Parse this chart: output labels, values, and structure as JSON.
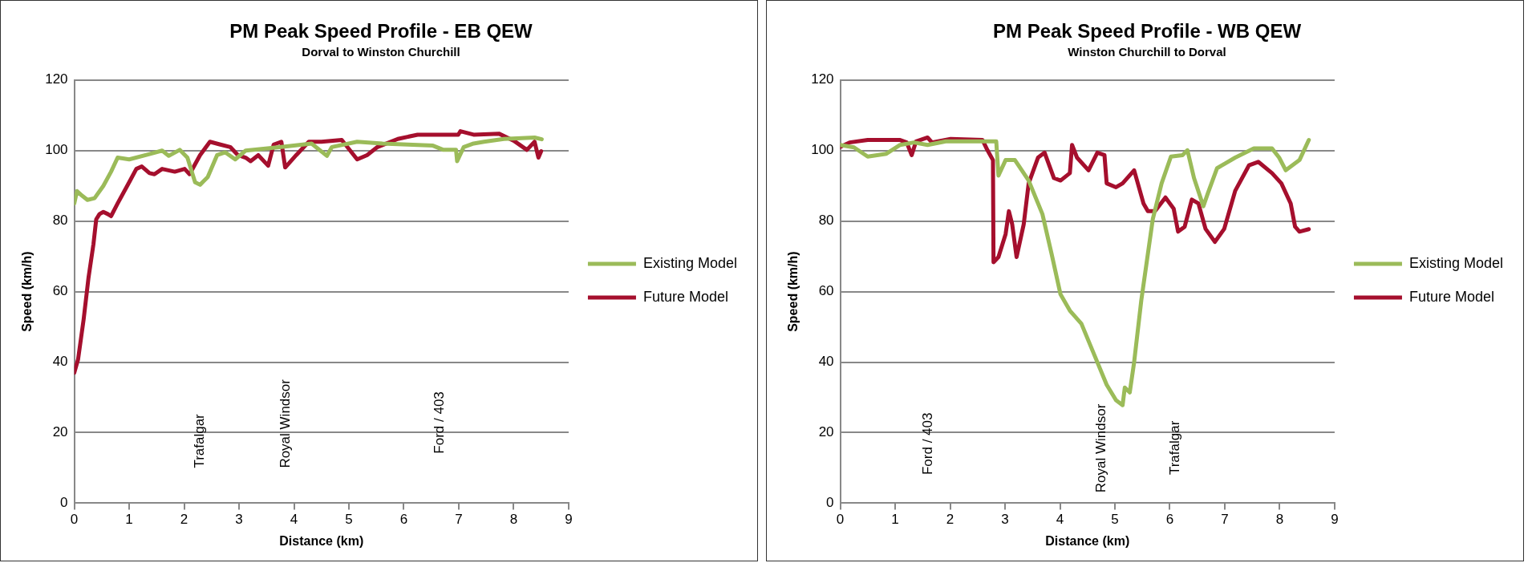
{
  "chart_data": [
    {
      "type": "line",
      "title": "PM Peak Speed Profile - EB QEW",
      "subtitle": "Dorval to Winston Churchill",
      "xlabel": "Distance (km)",
      "ylabel": "Speed (km/h)",
      "xlim": [
        0,
        9
      ],
      "xticks": [
        0,
        1,
        2,
        3,
        4,
        5,
        6,
        7,
        8,
        9
      ],
      "ylim": [
        0,
        120
      ],
      "yticks": [
        0,
        20,
        40,
        60,
        80,
        100,
        120
      ],
      "grid": "y",
      "legend": "right",
      "marker": "none",
      "annotations": [
        "Trafalgar",
        "Royal Windsor",
        "Ford / 403"
      ],
      "series": [
        {
          "name": "Existing Model",
          "color": "#9bbb59",
          "x": [
            0,
            0.05,
            0.12,
            0.24,
            0.37,
            0.53,
            0.67,
            0.79,
            1.0,
            1.37,
            1.6,
            1.72,
            1.92,
            2.06,
            2.2,
            2.29,
            2.43,
            2.6,
            2.75,
            2.93,
            3.12,
            3.77,
            4.32,
            4.6,
            4.69,
            5.15,
            5.61,
            6.07,
            6.53,
            6.72,
            6.95,
            6.97,
            7.09,
            7.27,
            7.46,
            7.82,
            8.38,
            8.51
          ],
          "values": [
            85,
            88.5,
            87.5,
            86,
            86.5,
            90,
            94,
            98,
            97.5,
            99,
            100,
            98.5,
            100.2,
            98,
            91,
            90.3,
            92.5,
            98.7,
            99.5,
            97.5,
            100,
            101,
            102,
            98.5,
            101,
            102.5,
            102,
            101.7,
            101.4,
            100.2,
            100.2,
            97,
            101,
            102,
            102.5,
            103.3,
            103.7,
            103.2
          ]
        },
        {
          "name": "Future Model",
          "color": "#a50f2d",
          "x": [
            0,
            0.07,
            0.17,
            0.26,
            0.35,
            0.4,
            0.46,
            0.53,
            0.61,
            0.67,
            0.79,
            1.0,
            1.13,
            1.23,
            1.37,
            1.46,
            1.6,
            1.83,
            2.01,
            2.1,
            2.29,
            2.47,
            2.66,
            2.84,
            2.98,
            3.12,
            3.21,
            3.35,
            3.53,
            3.63,
            3.77,
            3.84,
            4.04,
            4.27,
            4.5,
            4.87,
            5.15,
            5.33,
            5.52,
            5.89,
            6.25,
            6.99,
            7.03,
            7.27,
            7.73,
            8.0,
            8.24,
            8.38,
            8.45,
            8.5
          ],
          "values": [
            37,
            40.8,
            52,
            64,
            73.5,
            80.5,
            82,
            82.6,
            82,
            81.4,
            85,
            91,
            94.8,
            95.5,
            93.6,
            93.3,
            94.8,
            94,
            94.8,
            93.3,
            98.7,
            102.5,
            101.7,
            101,
            98.7,
            98,
            97,
            98.7,
            95.7,
            101.7,
            102.5,
            95.2,
            98.7,
            102.5,
            102.5,
            103,
            97.5,
            98.7,
            101,
            103.3,
            104.5,
            104.5,
            105.5,
            104.5,
            104.8,
            102.8,
            100.2,
            102.5,
            98,
            99.8
          ]
        }
      ]
    },
    {
      "type": "line",
      "title": "PM Peak Speed Profile - WB QEW",
      "subtitle": "Winston Churchill to Dorval",
      "xlabel": "Distance (km)",
      "ylabel": "Speed (km/h)",
      "xlim": [
        0,
        9
      ],
      "xticks": [
        0,
        1,
        2,
        3,
        4,
        5,
        6,
        7,
        8,
        9
      ],
      "ylim": [
        0,
        120
      ],
      "yticks": [
        0,
        20,
        40,
        60,
        80,
        100,
        120
      ],
      "grid": "y",
      "legend": "right",
      "marker": "none",
      "annotations": [
        "Ford / 403",
        "Royal Windsor",
        "Trafalgar"
      ],
      "series": [
        {
          "name": "Existing Model",
          "color": "#9bbb59",
          "x": [
            0,
            0.25,
            0.5,
            0.84,
            1.09,
            1.34,
            1.59,
            1.92,
            2.51,
            2.84,
            2.88,
            3.01,
            3.18,
            3.43,
            3.68,
            3.85,
            4.01,
            4.18,
            4.39,
            4.6,
            4.85,
            5.02,
            5.14,
            5.18,
            5.27,
            5.35,
            5.48,
            5.69,
            5.85,
            6.02,
            6.23,
            6.32,
            6.44,
            6.61,
            6.69,
            6.86,
            7.19,
            7.53,
            7.86,
            7.99,
            8.11,
            8.36,
            8.53
          ],
          "values": [
            101.6,
            100.9,
            98.3,
            99.1,
            101.6,
            102.3,
            101.6,
            102.6,
            102.6,
            102.6,
            92.9,
            97.3,
            97.3,
            91.5,
            82,
            70.5,
            59.2,
            54.6,
            50.9,
            43,
            33.6,
            29.2,
            27.8,
            32.8,
            31.4,
            40,
            57.5,
            80.6,
            90.7,
            98.3,
            98.7,
            100.1,
            92.2,
            84.2,
            87.8,
            95,
            98,
            100.6,
            100.6,
            98,
            94.4,
            97.3,
            103
          ]
        },
        {
          "name": "Future Model",
          "color": "#a50f2d",
          "x": [
            0,
            0.17,
            0.5,
            1.09,
            1.21,
            1.3,
            1.38,
            1.59,
            1.67,
            2.01,
            2.59,
            2.68,
            2.78,
            2.79,
            2.88,
            3.01,
            3.07,
            3.13,
            3.21,
            3.34,
            3.43,
            3.6,
            3.72,
            3.89,
            4.01,
            4.18,
            4.22,
            4.31,
            4.52,
            4.68,
            4.81,
            4.85,
            5.02,
            5.14,
            5.35,
            5.52,
            5.6,
            5.73,
            5.92,
            6.07,
            6.15,
            6.27,
            6.4,
            6.52,
            6.65,
            6.82,
            6.99,
            7.19,
            7.44,
            7.61,
            7.86,
            8.03,
            8.2,
            8.28,
            8.36,
            8.53
          ],
          "values": [
            101,
            102.3,
            103,
            103,
            102.3,
            98.7,
            102.6,
            103.7,
            102.3,
            103.3,
            103,
            100.1,
            97.3,
            68.3,
            69.8,
            76.3,
            82.8,
            79.1,
            69.8,
            79.1,
            90.7,
            98,
            99.4,
            92.2,
            91.5,
            93.6,
            101.6,
            98,
            94.4,
            99.4,
            98.7,
            90.7,
            89.6,
            90.7,
            94.4,
            85,
            82.8,
            82.8,
            86.7,
            83.5,
            77,
            78.4,
            86.1,
            85,
            77.8,
            74.1,
            77.8,
            88.6,
            95.8,
            96.8,
            93.6,
            90.7,
            85,
            78.4,
            77,
            77.7
          ]
        }
      ]
    }
  ]
}
